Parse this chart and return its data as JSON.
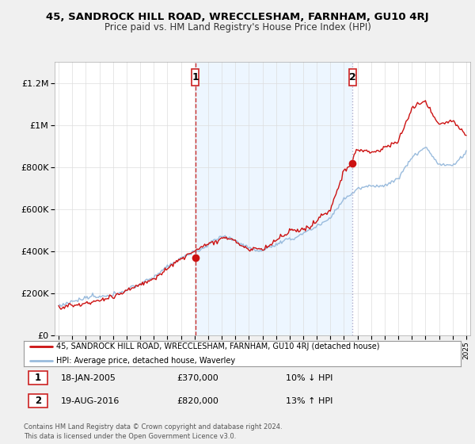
{
  "title": "45, SANDROCK HILL ROAD, WRECCLESHAM, FARNHAM, GU10 4RJ",
  "subtitle": "Price paid vs. HM Land Registry's House Price Index (HPI)",
  "ylim": [
    0,
    1300000
  ],
  "yticks": [
    0,
    200000,
    400000,
    600000,
    800000,
    1000000,
    1200000
  ],
  "ytick_labels": [
    "£0",
    "£200K",
    "£400K",
    "£600K",
    "£800K",
    "£1M",
    "£1.2M"
  ],
  "background_color": "#f0f0f0",
  "plot_bg_color": "#ffffff",
  "line1_color": "#cc1111",
  "line2_color": "#99bbdd",
  "sale1_year": 2005.05,
  "sale1_price": 370000,
  "sale2_year": 2016.64,
  "sale2_price": 820000,
  "vline1_color": "#cc3333",
  "vline2_color": "#aaaacc",
  "shade_color": "#ddeeff",
  "footer": "Contains HM Land Registry data © Crown copyright and database right 2024.\nThis data is licensed under the Open Government Licence v3.0.",
  "legend_line1": "45, SANDROCK HILL ROAD, WRECCLESHAM, FARNHAM, GU10 4RJ (detached house)",
  "legend_line2": "HPI: Average price, detached house, Waverley",
  "sale1_date": "18-JAN-2005",
  "sale1_amount": "£370,000",
  "sale1_hpi": "10% ↓ HPI",
  "sale2_date": "19-AUG-2016",
  "sale2_amount": "£820,000",
  "sale2_hpi": "13% ↑ HPI"
}
